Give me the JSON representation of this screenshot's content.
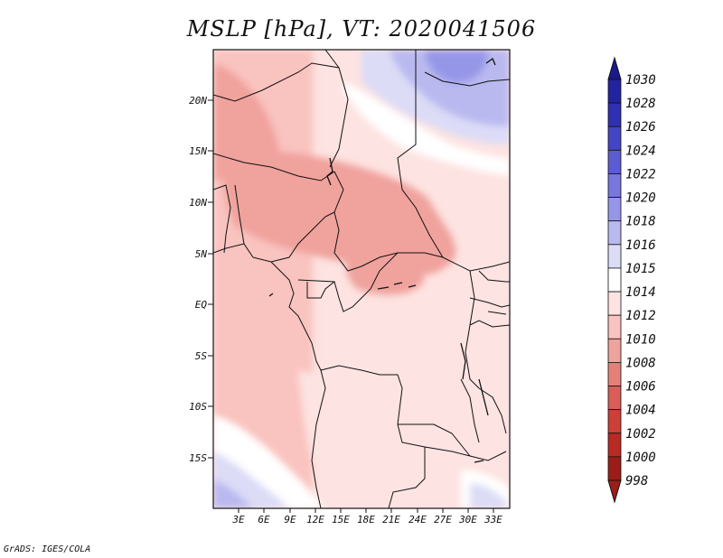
{
  "title": "MSLP [hPa], VT: 2020041506",
  "credit": "GrADS: IGES/COLA",
  "lat_ticks": [
    "20N",
    "15N",
    "10N",
    "5N",
    "EQ",
    "5S",
    "10S",
    "15S"
  ],
  "lon_ticks": [
    "3E",
    "6E",
    "9E",
    "12E",
    "15E",
    "18E",
    "21E",
    "24E",
    "27E",
    "30E",
    "33E"
  ],
  "colorbar": {
    "levels": [
      {
        "label": "1030",
        "color": "#1a1a8c"
      },
      {
        "label": "1028",
        "color": "#2323a0"
      },
      {
        "label": "1026",
        "color": "#3030b4"
      },
      {
        "label": "1024",
        "color": "#4545c4"
      },
      {
        "label": "1022",
        "color": "#5c5cd2"
      },
      {
        "label": "1020",
        "color": "#7777de"
      },
      {
        "label": "1018",
        "color": "#9696e8"
      },
      {
        "label": "1016",
        "color": "#b9b9f0"
      },
      {
        "label": "1015",
        "color": "#dcdcf7"
      },
      {
        "label": "1014",
        "color": "#ffffff"
      },
      {
        "label": "1012",
        "color": "#fde3e1"
      },
      {
        "label": "1010",
        "color": "#f9c3bf"
      },
      {
        "label": "1008",
        "color": "#f0a29d"
      },
      {
        "label": "1006",
        "color": "#e58079"
      },
      {
        "label": "1004",
        "color": "#d95e57"
      },
      {
        "label": "1002",
        "color": "#cc4038"
      },
      {
        "label": "1000",
        "color": "#b82a23"
      },
      {
        "label": "998",
        "color": "#9c1d18"
      }
    ]
  }
}
